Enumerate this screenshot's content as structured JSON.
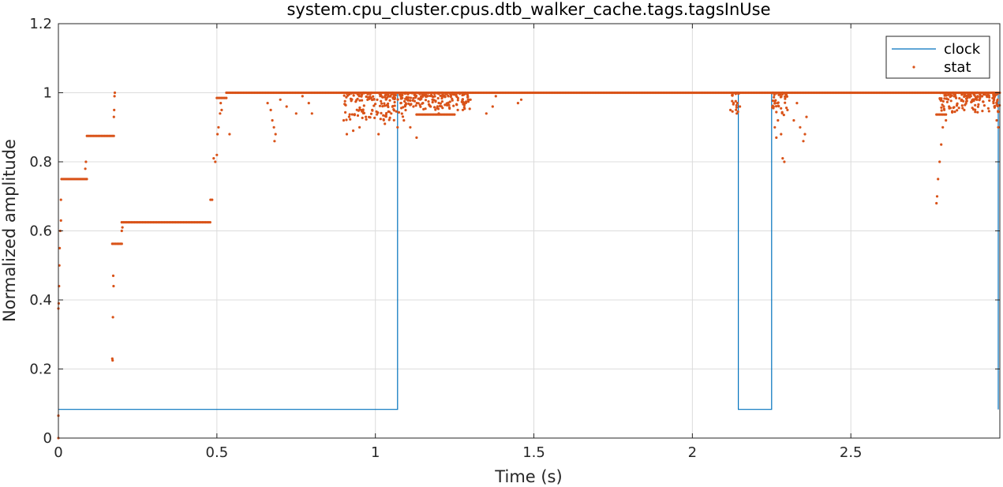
{
  "chart_data": {
    "type": "line",
    "title": "system.cpu_cluster.cpus.dtb_walker_cache.tags.tagsInUse",
    "xlabel": "Time (s)",
    "ylabel": "Normalized amplitude",
    "xlim": [
      0,
      2.97
    ],
    "ylim": [
      0,
      1.2
    ],
    "xticks": [
      0,
      0.5,
      1,
      1.5,
      2,
      2.5
    ],
    "xtick_labels": [
      "0",
      "0.5",
      "1",
      "1.5",
      "2",
      "2.5"
    ],
    "yticks": [
      0,
      0.2,
      0.4,
      0.6,
      0.8,
      1,
      1.2
    ],
    "ytick_labels": [
      "0",
      "0.2",
      "0.4",
      "0.6",
      "0.8",
      "1",
      "1.2"
    ],
    "grid": true,
    "legend_position": "top-right",
    "series": [
      {
        "name": "clock",
        "style": "step-line",
        "color": "#0072BD",
        "x": [
          0,
          1.07,
          1.07,
          2.145,
          2.145,
          2.25,
          2.25,
          2.965,
          2.965
        ],
        "y": [
          0.083,
          0.083,
          1.0,
          1.0,
          0.083,
          0.083,
          1.0,
          1.0,
          0.083
        ]
      },
      {
        "name": "stat",
        "style": "dots",
        "color": "#D95319",
        "segments": [
          {
            "x0": 0.01,
            "x1": 0.09,
            "y": 0.75
          },
          {
            "x0": 0.09,
            "x1": 0.175,
            "y": 0.875
          },
          {
            "x0": 0.17,
            "x1": 0.2,
            "y": 0.5625
          },
          {
            "x0": 0.2,
            "x1": 0.48,
            "y": 0.625
          },
          {
            "x0": 0.5,
            "x1": 0.53,
            "y": 0.985
          },
          {
            "x0": 0.53,
            "x1": 2.97,
            "y": 1.0
          },
          {
            "x0": 1.13,
            "x1": 1.25,
            "y": 0.937
          },
          {
            "x0": 2.77,
            "x1": 2.8,
            "y": 0.937
          }
        ],
        "points": [
          [
            0.0,
            0.0
          ],
          [
            0.0,
            0.065
          ],
          [
            0.0,
            0.375
          ],
          [
            0.001,
            0.39
          ],
          [
            0.002,
            0.44
          ],
          [
            0.003,
            0.5
          ],
          [
            0.004,
            0.55
          ],
          [
            0.006,
            0.6
          ],
          [
            0.008,
            0.69
          ],
          [
            0.008,
            0.63
          ],
          [
            0.085,
            0.78
          ],
          [
            0.087,
            0.8
          ],
          [
            0.17,
            0.23
          ],
          [
            0.171,
            0.225
          ],
          [
            0.172,
            0.35
          ],
          [
            0.173,
            0.47
          ],
          [
            0.174,
            0.44
          ],
          [
            0.175,
            0.93
          ],
          [
            0.176,
            0.95
          ],
          [
            0.177,
            0.99
          ],
          [
            0.178,
            1.0
          ],
          [
            0.2,
            0.6
          ],
          [
            0.202,
            0.61
          ],
          [
            0.48,
            0.69
          ],
          [
            0.485,
            0.69
          ],
          [
            0.49,
            0.81
          ],
          [
            0.495,
            0.8
          ],
          [
            0.5,
            0.82
          ],
          [
            0.502,
            0.88
          ],
          [
            0.505,
            0.9
          ],
          [
            0.51,
            0.94
          ],
          [
            0.512,
            0.97
          ],
          [
            0.515,
            0.95
          ],
          [
            0.54,
            0.88
          ],
          [
            0.66,
            0.97
          ],
          [
            0.67,
            0.95
          ],
          [
            0.675,
            0.92
          ],
          [
            0.68,
            0.9
          ],
          [
            0.682,
            0.86
          ],
          [
            0.685,
            0.88
          ],
          [
            0.7,
            0.98
          ],
          [
            0.72,
            0.96
          ],
          [
            0.75,
            0.94
          ],
          [
            0.77,
            0.99
          ],
          [
            0.79,
            0.97
          ],
          [
            0.8,
            0.94
          ],
          [
            0.9,
            0.92
          ],
          [
            0.91,
            0.88
          ],
          [
            0.93,
            0.89
          ],
          [
            0.95,
            0.9
          ],
          [
            0.97,
            0.93
          ],
          [
            0.99,
            0.95
          ],
          [
            1.01,
            0.88
          ],
          [
            1.03,
            0.91
          ],
          [
            1.05,
            0.94
          ],
          [
            1.07,
            0.9
          ],
          [
            1.08,
            0.97
          ],
          [
            1.09,
            0.92
          ],
          [
            1.11,
            0.9
          ],
          [
            1.12,
            0.96
          ],
          [
            1.13,
            0.87
          ],
          [
            1.15,
            0.97
          ],
          [
            1.18,
            0.98
          ],
          [
            1.2,
            0.94
          ],
          [
            1.23,
            0.99
          ],
          [
            1.26,
            0.95
          ],
          [
            1.28,
            0.97
          ],
          [
            1.3,
            0.98
          ],
          [
            1.35,
            0.94
          ],
          [
            1.37,
            0.96
          ],
          [
            1.38,
            0.99
          ],
          [
            1.45,
            0.97
          ],
          [
            1.46,
            0.98
          ],
          [
            2.12,
            0.95
          ],
          [
            2.13,
            0.97
          ],
          [
            2.14,
            0.94
          ],
          [
            2.15,
            0.96
          ],
          [
            2.26,
            0.9
          ],
          [
            2.265,
            0.87
          ],
          [
            2.27,
            0.92
          ],
          [
            2.28,
            0.88
          ],
          [
            2.285,
            0.81
          ],
          [
            2.29,
            0.8
          ],
          [
            2.3,
            0.95
          ],
          [
            2.32,
            0.92
          ],
          [
            2.33,
            0.97
          ],
          [
            2.34,
            0.9
          ],
          [
            2.35,
            0.86
          ],
          [
            2.355,
            0.88
          ],
          [
            2.36,
            0.93
          ],
          [
            2.77,
            0.68
          ],
          [
            2.772,
            0.7
          ],
          [
            2.775,
            0.75
          ],
          [
            2.78,
            0.8
          ],
          [
            2.785,
            0.85
          ],
          [
            2.79,
            0.9
          ],
          [
            2.8,
            0.92
          ],
          [
            2.81,
            0.96
          ],
          [
            2.85,
            0.98
          ],
          [
            2.9,
            0.99
          ],
          [
            2.95,
            0.97
          ],
          [
            2.96,
            0.92
          ],
          [
            2.965,
            0.9
          ]
        ],
        "dense_bands": [
          {
            "x0": 0.9,
            "x1": 1.1,
            "y0": 0.92,
            "y1": 1.0
          },
          {
            "x0": 1.08,
            "x1": 1.3,
            "y0": 0.95,
            "y1": 1.0
          },
          {
            "x0": 2.125,
            "x1": 2.15,
            "y0": 0.93,
            "y1": 1.0
          },
          {
            "x0": 2.25,
            "x1": 2.3,
            "y0": 0.93,
            "y1": 1.0
          },
          {
            "x0": 2.78,
            "x1": 2.97,
            "y0": 0.94,
            "y1": 1.0
          }
        ]
      }
    ]
  }
}
